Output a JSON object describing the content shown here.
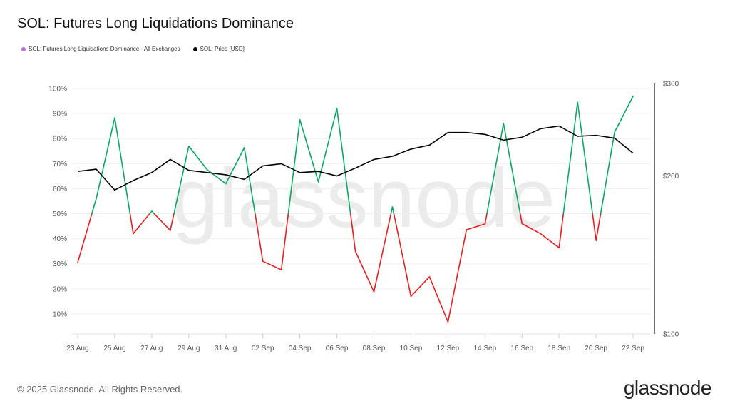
{
  "title": "SOL: Futures Long Liquidations Dominance",
  "legend": [
    {
      "label": "SOL: Futures Long Liquidations Dominance - All Exchanges",
      "color": "#c266f0"
    },
    {
      "label": "SOL: Price [USD]",
      "color": "#000000"
    }
  ],
  "watermark": "glassnode",
  "footer": "© 2025 Glassnode. All Rights Reserved.",
  "logo": "glassnode",
  "colors": {
    "above": "#0aa863",
    "below": "#ee1c1c",
    "price": "#000000",
    "grid": "#efefef"
  },
  "chart_data": {
    "type": "line",
    "x": [
      "23 Aug",
      "24 Aug",
      "25 Aug",
      "26 Aug",
      "27 Aug",
      "28 Aug",
      "29 Aug",
      "30 Aug",
      "31 Aug",
      "01 Sep",
      "02 Sep",
      "03 Sep",
      "04 Sep",
      "05 Sep",
      "06 Sep",
      "07 Sep",
      "08 Sep",
      "09 Sep",
      "10 Sep",
      "11 Sep",
      "12 Sep",
      "13 Sep",
      "14 Sep",
      "15 Sep",
      "16 Sep",
      "17 Sep",
      "18 Sep",
      "19 Sep",
      "20 Sep",
      "21 Sep",
      "22 Sep"
    ],
    "x_tick_labels": [
      "23 Aug",
      "25 Aug",
      "27 Aug",
      "29 Aug",
      "31 Aug",
      "02 Sep",
      "04 Sep",
      "06 Sep",
      "08 Sep",
      "10 Sep",
      "12 Sep",
      "14 Sep",
      "16 Sep",
      "18 Sep",
      "20 Sep",
      "22 Sep"
    ],
    "series": [
      {
        "name": "SOL: Futures Long Liquidations Dominance - All Exchanges",
        "axis": "left",
        "threshold": 50,
        "values": [
          30.5,
          56,
          88.3,
          42,
          51,
          43.3,
          77,
          67.5,
          62,
          76.4,
          31,
          27.6,
          87.5,
          62.7,
          92,
          35,
          18.8,
          52.7,
          17,
          24.8,
          6.8,
          43.6,
          45.9,
          86,
          46,
          42,
          36.4,
          94.5,
          39.3,
          82.6,
          96.9
        ]
      },
      {
        "name": "SOL: Price [USD]",
        "axis": "right",
        "values": [
          204,
          206,
          188,
          196,
          203,
          215,
          205,
          203,
          201,
          197,
          209,
          211,
          203,
          204,
          200,
          207,
          215,
          218,
          225,
          229,
          242,
          242,
          240,
          234,
          237,
          246,
          249,
          238,
          239,
          236,
          221
        ]
      }
    ],
    "y_left": {
      "ticks": [
        "10%",
        "20%",
        "30%",
        "40%",
        "50%",
        "60%",
        "70%",
        "80%",
        "90%",
        "100%"
      ],
      "tick_values": [
        10,
        20,
        30,
        40,
        50,
        60,
        70,
        80,
        90,
        100
      ],
      "range": [
        0,
        100
      ]
    },
    "y_right": {
      "ticks": [
        "$100",
        "$200",
        "$300"
      ],
      "tick_values": [
        100,
        200,
        300
      ],
      "range": [
        100,
        300
      ],
      "scale": "log"
    },
    "grid": true,
    "legend_position": "top-left"
  }
}
